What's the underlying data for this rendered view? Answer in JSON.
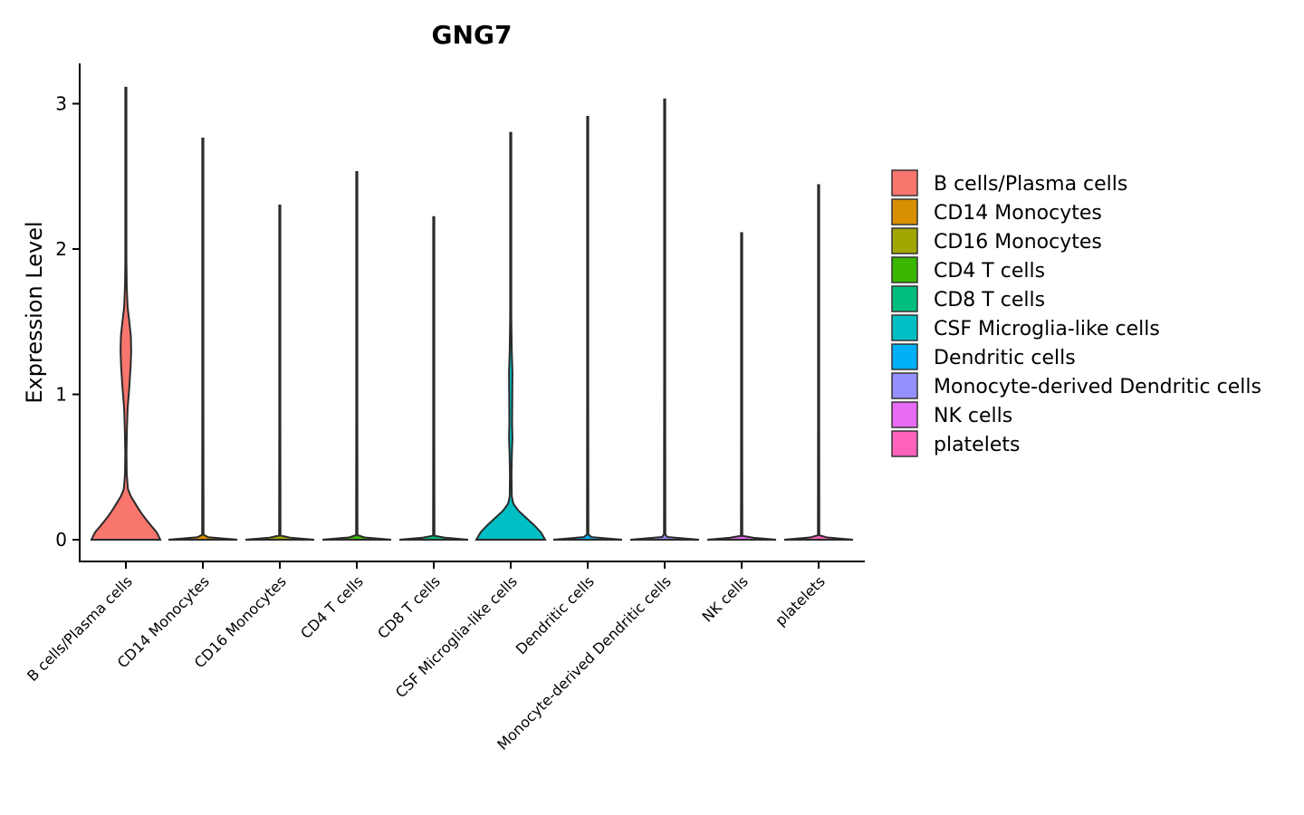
{
  "chart_data": {
    "type": "violin",
    "title": "GNG7",
    "xlabel": "",
    "ylabel": "Expression Level",
    "ylim": [
      -0.15,
      3.28
    ],
    "yticks": [
      0,
      1,
      2,
      3
    ],
    "categories": [
      "B cells/Plasma cells",
      "CD14 Monocytes",
      "CD16 Monocytes",
      "CD4 T cells",
      "CD8 T cells",
      "CSF Microglia-like cells",
      "Dendritic cells",
      "Monocyte-derived Dendritic cells",
      "NK cells",
      "platelets"
    ],
    "colors": [
      "#F8766D",
      "#D89000",
      "#A3A500",
      "#39B600",
      "#00BF7D",
      "#00BFC4",
      "#00B0F6",
      "#9590FF",
      "#E76BF3",
      "#FF62BC"
    ],
    "max_values": [
      3.11,
      2.76,
      2.3,
      2.53,
      2.22,
      2.8,
      2.91,
      3.03,
      2.11,
      2.44
    ],
    "density_profiles": [
      [
        [
          0,
          1.0
        ],
        [
          0.05,
          0.9
        ],
        [
          0.1,
          0.72
        ],
        [
          0.15,
          0.55
        ],
        [
          0.2,
          0.4
        ],
        [
          0.25,
          0.27
        ],
        [
          0.3,
          0.14
        ],
        [
          0.35,
          0.06
        ],
        [
          0.45,
          0.025
        ],
        [
          0.6,
          0.018
        ],
        [
          0.75,
          0.03
        ],
        [
          0.9,
          0.05
        ],
        [
          1.05,
          0.1
        ],
        [
          1.2,
          0.14
        ],
        [
          1.3,
          0.155
        ],
        [
          1.4,
          0.145
        ],
        [
          1.5,
          0.1
        ],
        [
          1.6,
          0.05
        ],
        [
          1.75,
          0.025
        ],
        [
          2.0,
          0.012
        ],
        [
          2.3,
          0.006
        ],
        [
          2.7,
          0.004
        ],
        [
          3.11,
          0.002
        ]
      ],
      [
        [
          0,
          1.0
        ],
        [
          0.02,
          0.02
        ],
        [
          2.76,
          0.008
        ]
      ],
      [
        [
          0,
          1.0
        ],
        [
          0.02,
          0.02
        ],
        [
          2.3,
          0.008
        ]
      ],
      [
        [
          0,
          1.0
        ],
        [
          0.02,
          0.02
        ],
        [
          2.53,
          0.008
        ]
      ],
      [
        [
          0,
          1.0
        ],
        [
          0.02,
          0.02
        ],
        [
          2.22,
          0.008
        ]
      ],
      [
        [
          0,
          1.0
        ],
        [
          0.05,
          0.88
        ],
        [
          0.1,
          0.68
        ],
        [
          0.15,
          0.45
        ],
        [
          0.2,
          0.22
        ],
        [
          0.25,
          0.07
        ],
        [
          0.3,
          0.03
        ],
        [
          0.45,
          0.022
        ],
        [
          0.6,
          0.035
        ],
        [
          0.7,
          0.05
        ],
        [
          0.8,
          0.04
        ],
        [
          1.0,
          0.045
        ],
        [
          1.15,
          0.05
        ],
        [
          1.3,
          0.03
        ],
        [
          1.5,
          0.018
        ],
        [
          1.8,
          0.01
        ],
        [
          2.2,
          0.006
        ],
        [
          2.8,
          0.003
        ]
      ],
      [
        [
          0,
          1.0
        ],
        [
          0.02,
          0.02
        ],
        [
          2.91,
          0.008
        ]
      ],
      [
        [
          0,
          1.0
        ],
        [
          0.02,
          0.02
        ],
        [
          3.03,
          0.008
        ]
      ],
      [
        [
          0,
          1.0
        ],
        [
          0.02,
          0.02
        ],
        [
          2.11,
          0.008
        ]
      ],
      [
        [
          0,
          1.0
        ],
        [
          0.02,
          0.02
        ],
        [
          2.44,
          0.008
        ]
      ]
    ],
    "legend_position": "right",
    "grid": false
  }
}
